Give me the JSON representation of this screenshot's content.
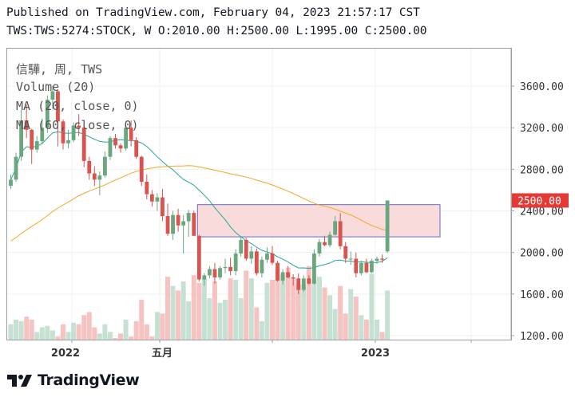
{
  "header": {
    "line1": "Published on TradingView.com, February 04, 2023 21:57:17 CST",
    "line2": "TWS:TWS:5274:STOCK, W O:2010.00 H:2500.00 L:1995.00 C:2500.00"
  },
  "legend": {
    "title": "信驊, 周, TWS",
    "volume": "Volume (20)",
    "ma20": "MA (20, close, 0)",
    "ma60": "MA (60, close, 0)"
  },
  "brand": {
    "name": "TradingView",
    "icon": "tradingview-logo-icon"
  },
  "colors": {
    "up": "#26a69a",
    "down": "#ef5350",
    "candle_up": "#6aa77f",
    "candle_down": "#d9534f",
    "ma20": "#26a69a",
    "ma60": "#f5a623",
    "price_label": "#e53935",
    "zone_fill": "#f8d7d7",
    "zone_stroke": "#6a6ac4"
  },
  "chart_data": {
    "type": "candlestick",
    "price_axis": {
      "ticks": [
        "1200.00",
        "1600.00",
        "2000.00",
        "2400.00",
        "2800.00",
        "3200.00",
        "3600.00"
      ],
      "range": [
        1200,
        3850
      ]
    },
    "time_axis": {
      "labels": [
        "2022",
        "五月",
        "2023"
      ]
    },
    "last_price": "2500.00",
    "zone": {
      "from_bar": 36,
      "to_bar": 84,
      "low": 2150,
      "high": 2460
    },
    "candles": [
      [
        2640,
        2750,
        2610,
        2700,
        1300
      ],
      [
        2700,
        2960,
        2680,
        2920,
        1330
      ],
      [
        2920,
        3370,
        2880,
        3270,
        1320
      ],
      [
        3270,
        3420,
        3100,
        3180,
        1350
      ],
      [
        3180,
        3190,
        2850,
        2990,
        1330
      ],
      [
        2990,
        3120,
        2960,
        3070,
        1250
      ],
      [
        3070,
        3290,
        3040,
        3200,
        1280
      ],
      [
        3200,
        3510,
        3150,
        3470,
        1290
      ],
      [
        3470,
        3600,
        3380,
        3550,
        1260
      ],
      [
        3550,
        3560,
        3020,
        3260,
        1220
      ],
      [
        3260,
        3280,
        2990,
        3050,
        1300
      ],
      [
        3050,
        3180,
        3000,
        3080,
        1250
      ],
      [
        3080,
        3250,
        3060,
        3220,
        1310
      ],
      [
        3220,
        3330,
        3120,
        3200,
        1300
      ],
      [
        3200,
        3220,
        2820,
        2880,
        1360
      ],
      [
        2880,
        2920,
        2700,
        2760,
        1380
      ],
      [
        2760,
        2830,
        2640,
        2700,
        1280
      ],
      [
        2700,
        2780,
        2550,
        2740,
        1240
      ],
      [
        2740,
        2970,
        2720,
        2920,
        1300
      ],
      [
        2920,
        3120,
        2890,
        3100,
        1250
      ],
      [
        3100,
        3140,
        3000,
        3030,
        1210
      ],
      [
        3030,
        3050,
        2960,
        3000,
        1240
      ],
      [
        3000,
        3250,
        2980,
        3200,
        1330
      ],
      [
        3200,
        3270,
        3020,
        3080,
        1220
      ],
      [
        3080,
        3110,
        2900,
        2920,
        1320
      ],
      [
        2920,
        2930,
        2640,
        2680,
        1460
      ],
      [
        2680,
        2750,
        2510,
        2560,
        1300
      ],
      [
        2560,
        2600,
        2440,
        2490,
        1220
      ],
      [
        2490,
        2570,
        2400,
        2530,
        1380
      ],
      [
        2530,
        2610,
        2300,
        2350,
        1370
      ],
      [
        2350,
        2470,
        2160,
        2180,
        1610
      ],
      [
        2180,
        2400,
        2120,
        2360,
        1550
      ],
      [
        2360,
        2420,
        2200,
        2260,
        1520
      ],
      [
        2260,
        2360,
        1990,
        2300,
        1580
      ],
      [
        2300,
        2410,
        2150,
        2380,
        1450
      ],
      [
        2380,
        2400,
        2160,
        2160,
        1620
      ],
      [
        2160,
        2170,
        1720,
        1740,
        1570
      ],
      [
        1740,
        1800,
        1680,
        1780,
        1600
      ],
      [
        1780,
        1870,
        1750,
        1840,
        1470
      ],
      [
        1840,
        1900,
        1700,
        1760,
        1580
      ],
      [
        1760,
        1870,
        1740,
        1850,
        1440
      ],
      [
        1850,
        1940,
        1800,
        1860,
        1460
      ],
      [
        1860,
        1950,
        1780,
        1820,
        1600
      ],
      [
        1820,
        2030,
        1780,
        1990,
        1590
      ],
      [
        1990,
        2150,
        1960,
        2120,
        1470
      ],
      [
        2120,
        2140,
        1920,
        1940,
        1650
      ],
      [
        1940,
        2060,
        1890,
        2010,
        1600
      ],
      [
        2010,
        2040,
        1780,
        1800,
        1410
      ],
      [
        1800,
        1960,
        1760,
        1930,
        1320
      ],
      [
        1930,
        2050,
        1900,
        1990,
        1570
      ],
      [
        1990,
        2060,
        1880,
        1900,
        1590
      ],
      [
        1900,
        1920,
        1720,
        1730,
        1660
      ],
      [
        1730,
        1840,
        1690,
        1810,
        1620
      ],
      [
        1810,
        1870,
        1750,
        1760,
        1670
      ],
      [
        1760,
        1790,
        1680,
        1750,
        1600
      ],
      [
        1750,
        1800,
        1600,
        1640,
        1560
      ],
      [
        1640,
        1780,
        1620,
        1750,
        1560
      ],
      [
        1750,
        1780,
        1690,
        1700,
        1680
      ],
      [
        1700,
        2030,
        1690,
        1990,
        1590
      ],
      [
        1990,
        2130,
        1960,
        2100,
        1610
      ],
      [
        2100,
        2160,
        2060,
        2070,
        1540
      ],
      [
        2070,
        2200,
        2050,
        2170,
        1490
      ],
      [
        2170,
        2350,
        2160,
        2300,
        1400
      ],
      [
        2300,
        2380,
        2030,
        2060,
        1550
      ],
      [
        2060,
        2100,
        1900,
        1940,
        1370
      ],
      [
        1940,
        2010,
        1880,
        1940,
        1530
      ],
      [
        1940,
        2000,
        1760,
        1800,
        1480
      ],
      [
        1800,
        1920,
        1780,
        1900,
        1360
      ],
      [
        1900,
        1940,
        1800,
        1810,
        1330
      ],
      [
        1810,
        1940,
        1800,
        1920,
        1630
      ],
      [
        1920,
        1960,
        1890,
        1940,
        1330
      ],
      [
        1940,
        1980,
        1900,
        1930,
        1250
      ],
      [
        2010,
        2500,
        1995,
        2500,
        1520
      ]
    ]
  }
}
